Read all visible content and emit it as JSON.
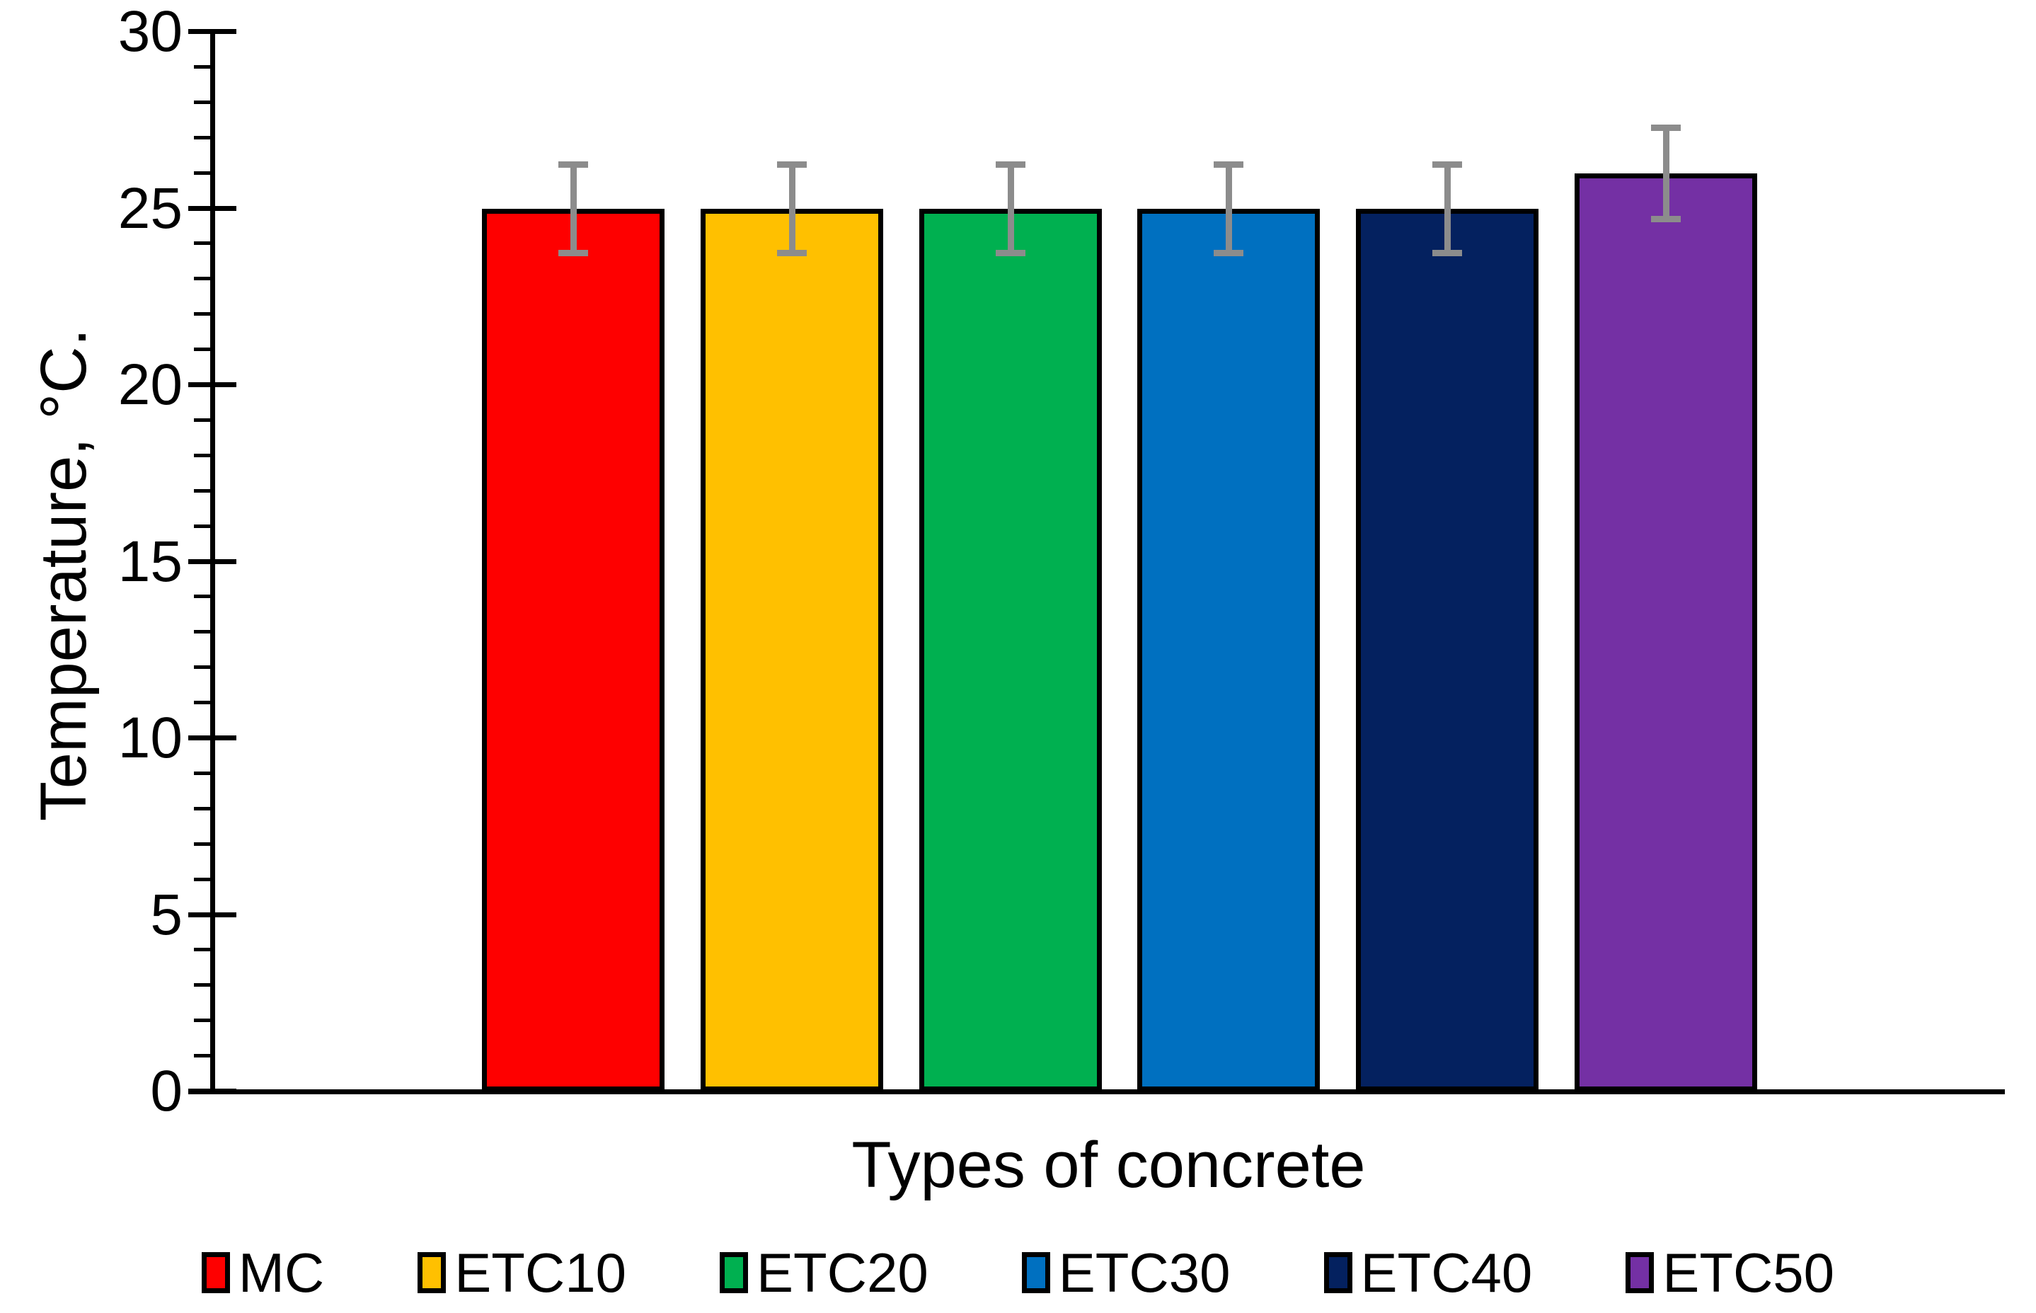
{
  "chart_data": {
    "type": "bar",
    "title": "",
    "xlabel": "Types of concrete",
    "ylabel": "Temperature, °C.",
    "categories": [
      "MC",
      "ETC10",
      "ETC20",
      "ETC30",
      "ETC40",
      "ETC50"
    ],
    "values": [
      25,
      25,
      25,
      25,
      25,
      26
    ],
    "error_plus": [
      1.25,
      1.25,
      1.25,
      1.25,
      1.25,
      1.3
    ],
    "error_minus": [
      1.25,
      1.25,
      1.25,
      1.25,
      1.25,
      1.3
    ],
    "bar_colors": [
      "#fe0000",
      "#ffc000",
      "#00b050",
      "#0070c0",
      "#04215f",
      "#7430a4"
    ],
    "bar_border_color": "#000000",
    "error_bar_color": "#8c8c8c",
    "axis_color": "#000000",
    "text_color": "#000000",
    "ylim": [
      0,
      30
    ],
    "ytick_step": 5,
    "yminor_step": 1,
    "ytick_labels": [
      "0",
      "5",
      "10",
      "15",
      "20",
      "25",
      "30"
    ],
    "grid": false,
    "legend_position": "bottom"
  }
}
